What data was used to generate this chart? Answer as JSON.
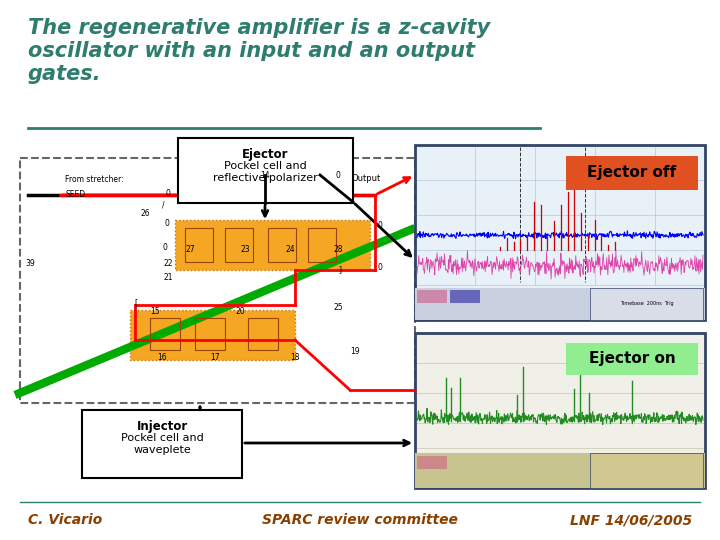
{
  "title_line1": "The regenerative amplifier is a z-cavity",
  "title_line2": "oscillator with an input and an output",
  "title_line3": "gates.",
  "title_color": "#2e7d6e",
  "background_color": "#ffffff",
  "border_color": "#2e7d6e",
  "footer_left": "C. Vicario",
  "footer_center": "SPARC review committee",
  "footer_right": "LNF 14/06/2005",
  "footer_color": "#8B4000",
  "ejector_label_bold": "Ejector",
  "ejector_label_normal": "Pockel cell and\nreflective polarizer",
  "injector_label_bold": "Injector",
  "injector_label_normal": "Pockel cell and\nwaveplete",
  "ejector_off_label": "Ejector off",
  "ejector_on_label": "Ejector on",
  "output_label": "Output",
  "from_stretcher_label": "From stretcher:",
  "seed_label": "SEED",
  "orange_box_color": "#f5a623",
  "orange_box_edge": "#cc7700",
  "diagram_border_color": "#666666",
  "ejector_off_bg": "#e05020",
  "ejector_on_bg": "#90ee90",
  "scope_top_bg": "#e8f0f8",
  "scope_bot_bg": "#f0f0e8",
  "scope_top_border": "#334466",
  "scope_bot_border": "#334466"
}
